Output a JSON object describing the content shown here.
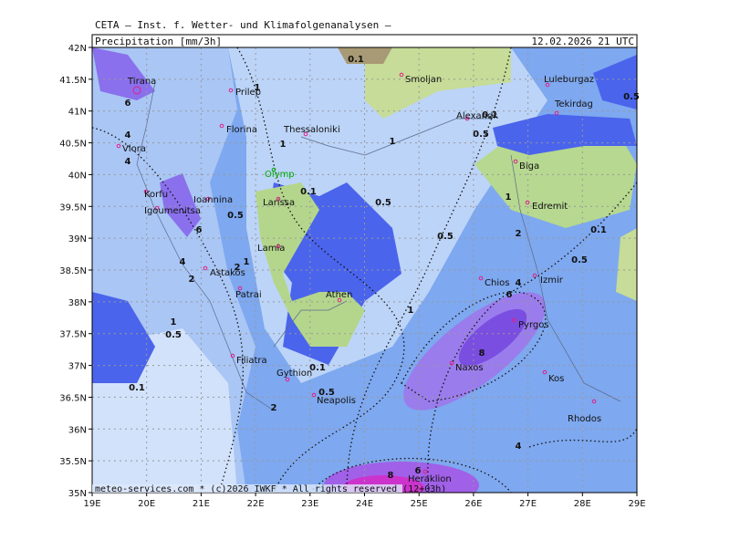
{
  "header": {
    "institute": "CETA – Inst. f. Wetter- und Klimafolgenanalysen –",
    "title": "Precipitation [mm/3h]",
    "valid_time": "12.02.2026 21 UTC",
    "footer": "meteo-services.com * (c)2026 IWKF * All rights reserved (12+03h)"
  },
  "map": {
    "lonlim": [
      19,
      29
    ],
    "latlim": [
      35,
      42
    ],
    "lat_ticks": [
      {
        "value": 42,
        "label": "42N"
      },
      {
        "value": 41.5,
        "label": "41.5N"
      },
      {
        "value": 41,
        "label": "41N"
      },
      {
        "value": 40.5,
        "label": "40.5N"
      },
      {
        "value": 40,
        "label": "40N"
      },
      {
        "value": 39.5,
        "label": "39.5N"
      },
      {
        "value": 39,
        "label": "39N"
      },
      {
        "value": 38.5,
        "label": "38.5N"
      },
      {
        "value": 38,
        "label": "38N"
      },
      {
        "value": 37.5,
        "label": "37.5N"
      },
      {
        "value": 37,
        "label": "37N"
      },
      {
        "value": 36.5,
        "label": "36.5N"
      },
      {
        "value": 36,
        "label": "36N"
      },
      {
        "value": 35.5,
        "label": "35.5N"
      },
      {
        "value": 35,
        "label": "35N"
      }
    ],
    "lon_ticks": [
      {
        "value": 19,
        "label": "19E"
      },
      {
        "value": 20,
        "label": "20E"
      },
      {
        "value": 21,
        "label": "21E"
      },
      {
        "value": 22,
        "label": "22E"
      },
      {
        "value": 23,
        "label": "23E"
      },
      {
        "value": 24,
        "label": "24E"
      },
      {
        "value": 25,
        "label": "25E"
      },
      {
        "value": 26,
        "label": "26E"
      },
      {
        "value": 27,
        "label": "27E"
      },
      {
        "value": 28,
        "label": "28E"
      },
      {
        "value": 29,
        "label": "29E"
      }
    ],
    "cities": [
      "Tirana",
      "Prilep",
      "Florina",
      "Thessaloniki",
      "Smoljan",
      "Luleburgaz",
      "Alexandr.",
      "Tekirdag",
      "Vlora",
      "Biga",
      "Olymp",
      "Korfu",
      "Igoumenitsa",
      "Ioannina",
      "Larissa",
      "Edremit",
      "Lamia",
      "Astakos",
      "Chios",
      "Izmir",
      "Patrai",
      "Athen",
      "Pyrgos",
      "Filiatra",
      "Naxos",
      "Gythion",
      "Kos",
      "Neapolis",
      "Rhodos",
      "Heraklion"
    ],
    "contour_labels": [
      0.1,
      1,
      6,
      4,
      0.1,
      0.5,
      1,
      1,
      4,
      0.1,
      0.5,
      0.5,
      6,
      1,
      2,
      0.5,
      0.1,
      4,
      2,
      1,
      2,
      0.5,
      4,
      6,
      1,
      0.5,
      1,
      8,
      0.1,
      0.5,
      0.1,
      2,
      4,
      8,
      6,
      0.5
    ]
  }
}
